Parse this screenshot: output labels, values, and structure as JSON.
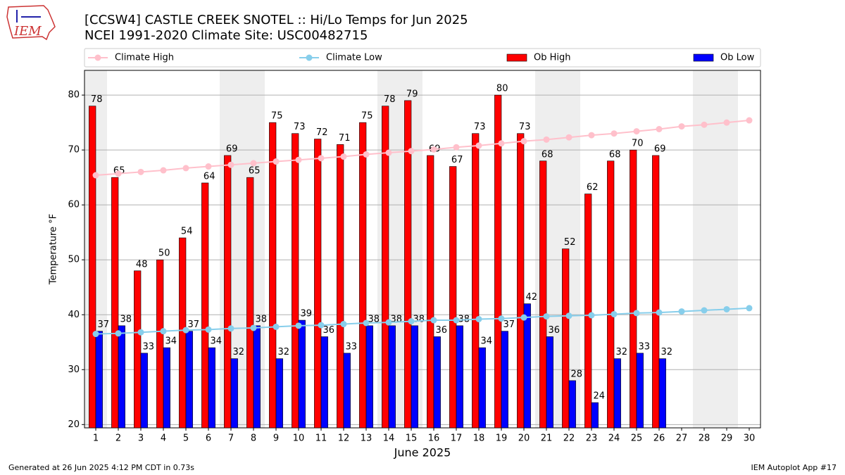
{
  "chart_data": {
    "type": "bar",
    "title": "[CCSW4] CASTLE CREEK SNOTEL :: Hi/Lo Temps for Jun 2025",
    "subtitle": "NCEI 1991-2020 Climate Site: USC00482715",
    "logo_text": "IEM",
    "xlabel": "June 2025",
    "ylabel": "Temperature °F",
    "footer_left": "Generated at 26 Jun 2025 4:12 PM CDT in 0.73s",
    "footer_right": "IEM Autoplot App #17",
    "x": [
      1,
      2,
      3,
      4,
      5,
      6,
      7,
      8,
      9,
      10,
      11,
      12,
      13,
      14,
      15,
      16,
      17,
      18,
      19,
      20,
      21,
      22,
      23,
      24,
      25,
      26,
      27,
      28,
      29,
      30
    ],
    "xlim": [
      0.5,
      30.5
    ],
    "xticks": [
      1,
      2,
      3,
      4,
      5,
      6,
      7,
      8,
      9,
      10,
      11,
      12,
      13,
      14,
      15,
      16,
      17,
      18,
      19,
      20,
      21,
      22,
      23,
      24,
      25,
      26,
      27,
      28,
      29,
      30
    ],
    "ylim": [
      19.4,
      84.5
    ],
    "yticks": [
      20,
      30,
      40,
      50,
      60,
      70,
      80
    ],
    "grid": true,
    "weekend_days": [
      1,
      7,
      8,
      14,
      15,
      21,
      22,
      28,
      29
    ],
    "weekend_color": "#eeeeee",
    "series": [
      {
        "name": "Climate High",
        "type": "line",
        "color": "#ffc0cb",
        "values": [
          65.4,
          65.7,
          66.0,
          66.3,
          66.7,
          67.0,
          67.3,
          67.6,
          67.9,
          68.2,
          68.5,
          68.8,
          69.2,
          69.5,
          69.8,
          70.1,
          70.5,
          70.8,
          71.2,
          71.6,
          71.9,
          72.3,
          72.7,
          73.0,
          73.4,
          73.8,
          74.3,
          74.6,
          75.0,
          75.4
        ]
      },
      {
        "name": "Climate Low",
        "type": "line",
        "color": "#87ceeb",
        "values": [
          36.5,
          36.6,
          36.8,
          37.0,
          37.2,
          37.3,
          37.5,
          37.6,
          37.8,
          38.0,
          38.1,
          38.3,
          38.5,
          38.6,
          38.8,
          39.0,
          39.0,
          39.2,
          39.3,
          39.5,
          39.7,
          39.8,
          39.9,
          40.1,
          40.3,
          40.4,
          40.6,
          40.8,
          41.0,
          41.2
        ]
      },
      {
        "name": "Ob High",
        "type": "bar",
        "color": "#ff0000",
        "values": [
          78,
          65,
          48,
          50,
          54,
          64,
          69,
          65,
          75,
          73,
          72,
          71,
          75,
          78,
          79,
          69,
          67,
          73,
          80,
          73,
          68,
          52,
          62,
          68,
          70,
          69,
          null,
          null,
          null,
          null
        ]
      },
      {
        "name": "Ob Low",
        "type": "bar",
        "color": "#0000ff",
        "values": [
          37,
          38,
          33,
          34,
          37,
          34,
          32,
          38,
          32,
          39,
          36,
          33,
          38,
          38,
          38,
          36,
          38,
          34,
          37,
          42,
          36,
          28,
          24,
          32,
          33,
          32,
          null,
          null,
          null,
          null
        ]
      }
    ]
  }
}
